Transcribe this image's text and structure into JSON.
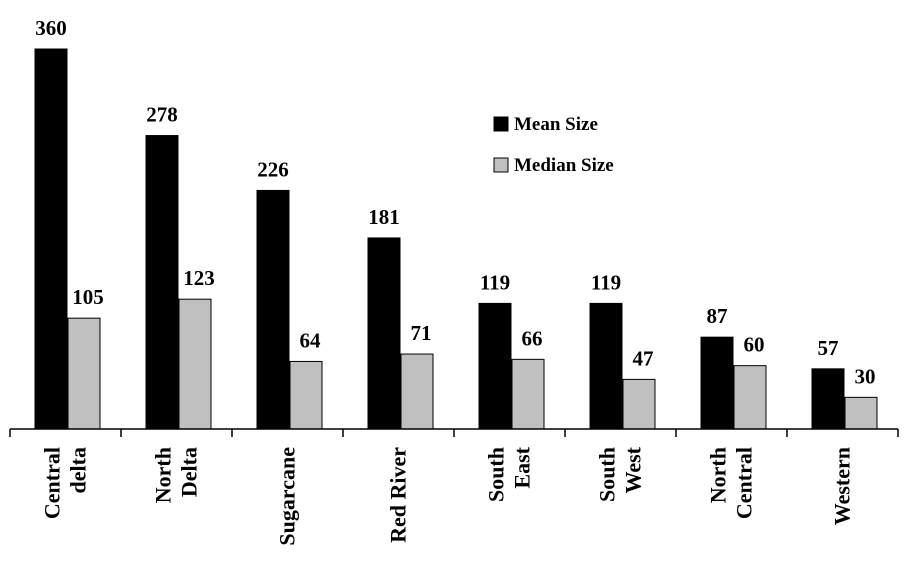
{
  "chart_data": {
    "type": "bar",
    "title": "",
    "xlabel": "",
    "ylabel": "",
    "categories": [
      [
        "Central",
        "delta"
      ],
      [
        "North",
        "Delta"
      ],
      [
        "Sugarcane"
      ],
      [
        "Red River"
      ],
      [
        "South",
        "East"
      ],
      [
        "South",
        "West"
      ],
      [
        "North",
        "Central"
      ],
      [
        "Western"
      ]
    ],
    "series": [
      {
        "name": "Mean Size",
        "color": "#000000",
        "values": [
          360,
          278,
          226,
          181,
          119,
          119,
          87,
          57
        ]
      },
      {
        "name": "Median Size",
        "color": "#c0c0c0",
        "values": [
          105,
          123,
          64,
          71,
          66,
          47,
          60,
          30
        ]
      }
    ],
    "ylim": [
      0,
      360
    ],
    "grid": false,
    "legend_position": "top-right",
    "data_labels": true
  }
}
